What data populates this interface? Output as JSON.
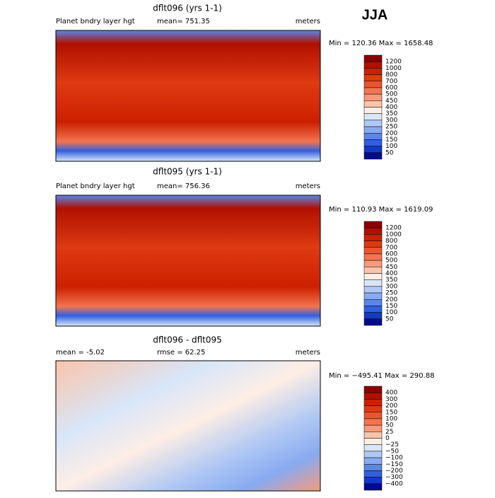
{
  "header": {
    "title": "JJA"
  },
  "panels": [
    {
      "title": "dflt096 (yrs 1-1)",
      "left_label": "Planet bndry layer hgt",
      "center_label": "mean= 751.35",
      "units": "meters",
      "minmax": "Min = 120.36 Max = 1658.48",
      "colorbar": {
        "labels": [
          "1200",
          "1000",
          "800",
          "700",
          "600",
          "500",
          "450",
          "400",
          "350",
          "300",
          "250",
          "200",
          "150",
          "100",
          "50"
        ],
        "colors": [
          "#8b0000",
          "#b01000",
          "#cc2000",
          "#de3a12",
          "#ea5530",
          "#f27550",
          "#f79a7c",
          "#fbc4ab",
          "#fdeee5",
          "#d8e6f8",
          "#b0c8f4",
          "#88aaf0",
          "#5a86ea",
          "#3060e0",
          "#1538c8",
          "#000c8a"
        ]
      }
    },
    {
      "title": "dflt095 (yrs 1-1)",
      "left_label": "Planet bndry layer hgt",
      "center_label": "mean= 756.36",
      "units": "meters",
      "minmax": "Min = 110.93 Max = 1619.09",
      "colorbar": {
        "labels": [
          "1200",
          "1000",
          "800",
          "700",
          "600",
          "500",
          "450",
          "400",
          "350",
          "300",
          "250",
          "200",
          "150",
          "100",
          "50"
        ],
        "colors": [
          "#8b0000",
          "#b01000",
          "#cc2000",
          "#de3a12",
          "#ea5530",
          "#f27550",
          "#f79a7c",
          "#fbc4ab",
          "#fdeee5",
          "#d8e6f8",
          "#b0c8f4",
          "#88aaf0",
          "#5a86ea",
          "#3060e0",
          "#1538c8",
          "#000c8a"
        ]
      }
    },
    {
      "title": "dflt096 - dflt095",
      "left_label": "mean =  -5.02",
      "center_label": "rmse =  62.25",
      "units": "meters",
      "minmax": "Min = −495.41 Max = 290.88",
      "colorbar": {
        "labels": [
          "400",
          "300",
          "200",
          "150",
          "100",
          "50",
          "25",
          "0",
          "−25",
          "−50",
          "−100",
          "−150",
          "−200",
          "−300",
          "−400"
        ],
        "colors": [
          "#8b0000",
          "#b01000",
          "#cc2000",
          "#de3a12",
          "#ea5530",
          "#f27550",
          "#f79a7c",
          "#fbc4ab",
          "#fdeee5",
          "#d8e6f8",
          "#b0c8f4",
          "#88aaf0",
          "#5a86ea",
          "#3060e0",
          "#1538c8",
          "#000c8a"
        ]
      }
    }
  ]
}
